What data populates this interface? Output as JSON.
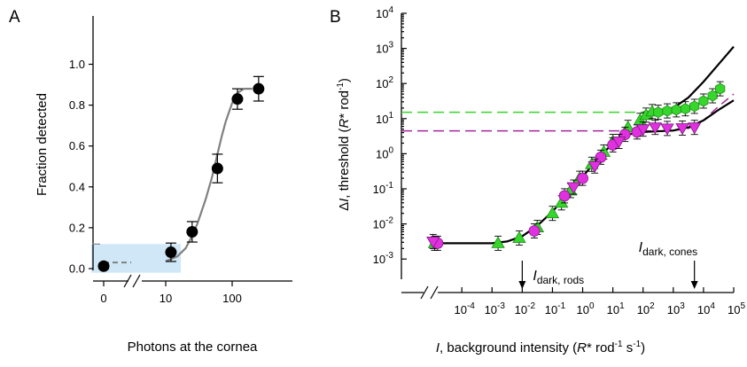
{
  "colors": {
    "shade": "#cfe7f6",
    "fit_a": "#808080",
    "marker_a": "#000000",
    "green": "#36d62c",
    "green_edge": "#1c8a16",
    "magenta": "#e030e0",
    "magenta_edge": "#7a1a7a",
    "green_dash": "#36d62c",
    "magenta_dash": "#a02aa0",
    "model": "#000000"
  },
  "chart_data": [
    {
      "panel": "A",
      "type": "scatter",
      "ylabel": "Fraction detected",
      "xlabel": "Photons at the cornea",
      "y_ticks": [
        "0.0",
        "0.2",
        "0.4",
        "0.6",
        "0.8",
        "1.0"
      ],
      "ylim": [
        0,
        1
      ],
      "x_ticks": [
        "0",
        "10",
        "100"
      ],
      "x_scale": "log with axis break; 0 plotted left of the break",
      "points": [
        {
          "x": 0,
          "y": 0.012,
          "err": 0.012
        },
        {
          "x": 12,
          "y": 0.08,
          "err": 0.045
        },
        {
          "x": 25,
          "y": 0.18,
          "err": 0.05
        },
        {
          "x": 60,
          "y": 0.49,
          "err": 0.07
        },
        {
          "x": 120,
          "y": 0.83,
          "err": 0.05
        },
        {
          "x": 250,
          "y": 0.88,
          "err": 0.06
        }
      ],
      "fit_curve": {
        "style": "gray line, dashed below the break",
        "baseline_dashed": 0.03,
        "points": [
          [
            0,
            0.03
          ],
          [
            5,
            0.03
          ],
          [
            10,
            0.036
          ],
          [
            15,
            0.06
          ],
          [
            20,
            0.1
          ],
          [
            25,
            0.16
          ],
          [
            30,
            0.22
          ],
          [
            40,
            0.34
          ],
          [
            50,
            0.45
          ],
          [
            60,
            0.56
          ],
          [
            70,
            0.65
          ],
          [
            80,
            0.72
          ],
          [
            100,
            0.81
          ],
          [
            120,
            0.86
          ],
          [
            150,
            0.88
          ],
          [
            200,
            0.88
          ]
        ]
      },
      "shaded_region": {
        "x": [
          0,
          16
        ],
        "y": [
          -0.02,
          0.12
        ]
      },
      "short_dash_marker": {
        "x": 0,
        "y": 0.12
      }
    },
    {
      "panel": "B",
      "type": "scatter",
      "xlabel": {
        "italic_symbol": "I",
        "text": ", background intensity (",
        "italic_r": "R",
        "rest": "* rod",
        "exp1": "-1",
        "mid": " s",
        "exp2": "-1",
        "close": ")"
      },
      "ylabel": {
        "pre": "Δ",
        "italic_symbol": "I",
        "text": ", threshold (",
        "italic_r": "R",
        "rest": "* rod",
        "exp": "-1",
        "close": ")"
      },
      "x_scale": "log",
      "y_scale": "log",
      "xlim_log10": [
        -6,
        5
      ],
      "ylim_log10": [
        -3.5,
        4
      ],
      "x_ticks": [
        {
          "base": "10",
          "exp": "-4"
        },
        {
          "base": "10",
          "exp": "-3"
        },
        {
          "base": "10",
          "exp": "-2"
        },
        {
          "base": "10",
          "exp": "-1"
        },
        {
          "base": "10",
          "exp": "0"
        },
        {
          "base": "10",
          "exp": "1"
        },
        {
          "base": "10",
          "exp": "2"
        },
        {
          "base": "10",
          "exp": "3"
        },
        {
          "base": "10",
          "exp": "4"
        },
        {
          "base": "10",
          "exp": "5"
        }
      ],
      "y_ticks": [
        {
          "base": "10",
          "exp": "-3"
        },
        {
          "base": "10",
          "exp": "-2"
        },
        {
          "base": "10",
          "exp": "-1"
        },
        {
          "base": "10",
          "exp": "0"
        },
        {
          "base": "10",
          "exp": "1"
        },
        {
          "base": "10",
          "exp": "2"
        },
        {
          "base": "10",
          "exp": "3"
        },
        {
          "base": "10",
          "exp": "4"
        }
      ],
      "annotations": [
        {
          "main": "I",
          "sub": "dark, rods",
          "arrow_x_log10": -2
        },
        {
          "main": "I",
          "sub": "dark, cones",
          "arrow_x_log10": 3.7
        }
      ],
      "series": [
        {
          "marker": "triangle-up",
          "color": "green",
          "points_log10": [
            [
              -4.9,
              -2.55
            ],
            [
              -2.8,
              -2.55
            ],
            [
              -2.1,
              -2.4
            ],
            [
              -1.5,
              -2.1
            ],
            [
              -1.0,
              -1.7
            ],
            [
              -0.7,
              -1.4
            ],
            [
              -0.4,
              -1.05
            ],
            [
              -0.1,
              -0.7
            ],
            [
              0.3,
              -0.3
            ],
            [
              0.7,
              0.05
            ],
            [
              1.0,
              0.35
            ],
            [
              1.5,
              0.75
            ],
            [
              1.9,
              0.95
            ],
            [
              2.1,
              1.1
            ],
            [
              2.3,
              1.2
            ]
          ]
        },
        {
          "marker": "hexagon",
          "color": "green",
          "points_log10": [
            [
              2.5,
              1.18
            ],
            [
              2.8,
              1.22
            ],
            [
              3.1,
              1.25
            ],
            [
              3.4,
              1.28
            ],
            [
              3.7,
              1.35
            ],
            [
              4.0,
              1.5
            ],
            [
              4.3,
              1.65
            ],
            [
              4.55,
              1.85
            ]
          ]
        },
        {
          "marker": "circle",
          "color": "magenta",
          "points_log10": [
            [
              -4.8,
              -2.55
            ],
            [
              -1.6,
              -2.2
            ],
            [
              -0.6,
              -1.2
            ],
            [
              0.0,
              -0.7
            ],
            [
              0.6,
              -0.1
            ],
            [
              1.0,
              0.25
            ],
            [
              1.4,
              0.55
            ],
            [
              1.8,
              0.62
            ]
          ]
        },
        {
          "marker": "triangle-down",
          "color": "magenta",
          "points_log10": [
            [
              -4.95,
              -2.5
            ],
            [
              -0.3,
              -0.95
            ],
            [
              0.4,
              -0.35
            ],
            [
              1.2,
              0.35
            ],
            [
              2.0,
              0.7
            ],
            [
              2.4,
              0.75
            ],
            [
              2.8,
              0.72
            ],
            [
              3.3,
              0.73
            ],
            [
              3.7,
              0.75
            ]
          ]
        }
      ],
      "reference_lines": [
        {
          "style": "green dash",
          "y_log10": 1.18,
          "x_from_log10": -6,
          "x_to_log10": 2.2
        },
        {
          "style": "magenta dash",
          "y_log10": 0.65,
          "x_from_log10": -6,
          "x_to_log10": 2.5
        }
      ],
      "model_curves": [
        {
          "name": "lower",
          "points_log10": [
            [
              -5.0,
              -2.55
            ],
            [
              -3.0,
              -2.55
            ],
            [
              -2.5,
              -2.5
            ],
            [
              -2.0,
              -2.35
            ],
            [
              -1.5,
              -2.05
            ],
            [
              -1.0,
              -1.65
            ],
            [
              -0.5,
              -1.15
            ],
            [
              0.0,
              -0.65
            ],
            [
              0.5,
              -0.15
            ],
            [
              1.0,
              0.3
            ],
            [
              1.5,
              0.55
            ],
            [
              2.0,
              0.62
            ],
            [
              2.5,
              0.64
            ],
            [
              3.0,
              0.66
            ],
            [
              3.5,
              0.75
            ],
            [
              4.0,
              0.95
            ],
            [
              4.5,
              1.25
            ],
            [
              5.0,
              1.52
            ]
          ]
        },
        {
          "name": "upper",
          "points_log10": [
            [
              2.0,
              1.18
            ],
            [
              2.5,
              1.2
            ],
            [
              3.0,
              1.3
            ],
            [
              3.5,
              1.6
            ],
            [
              4.0,
              2.05
            ],
            [
              4.5,
              2.55
            ],
            [
              5.0,
              3.05
            ]
          ]
        }
      ],
      "magenta_dashed_tail": {
        "points_log10": [
          [
            3.0,
            0.66
          ],
          [
            3.5,
            0.72
          ],
          [
            4.0,
            0.95
          ],
          [
            4.5,
            1.35
          ],
          [
            5.0,
            1.7
          ]
        ]
      }
    }
  ]
}
